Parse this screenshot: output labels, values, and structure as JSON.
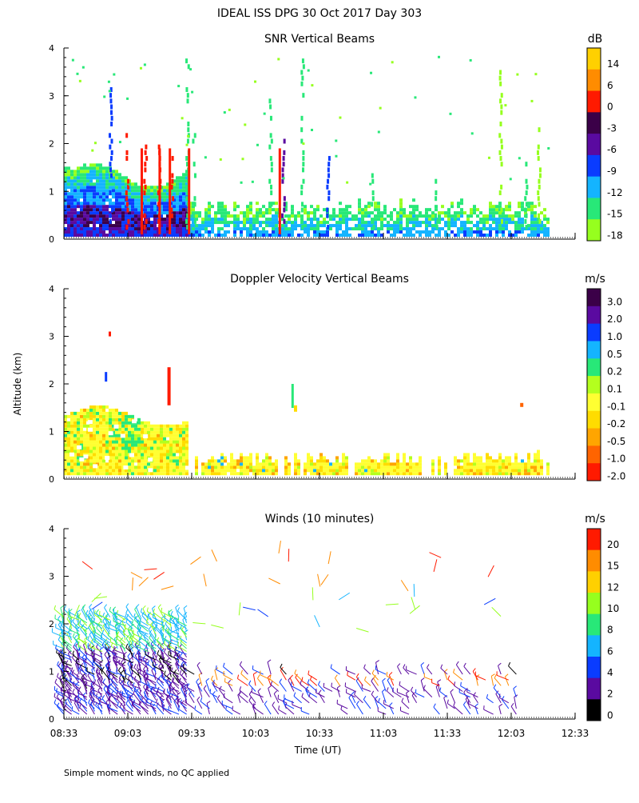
{
  "page": {
    "title": "IDEAL ISS DPG  30 Oct 2017 Day 303",
    "ylabel": "Altitude (km)",
    "xlabel": "Time (UT)",
    "footnote": "Simple moment winds, no QC applied"
  },
  "chart_data": [
    {
      "type": "heatmap",
      "title": "SNR Vertical Beams",
      "unit": "dB",
      "y_ticks": [
        "0",
        "1",
        "2",
        "3",
        "4"
      ],
      "ylim": [
        0,
        4
      ],
      "x_ticks": [],
      "colorbar": {
        "labels": [
          "14",
          "6",
          "0",
          "-3",
          "-6",
          "-9",
          "-12",
          "-15",
          "-18"
        ],
        "colors": [
          "#ffd000",
          "#ff8c00",
          "#ff1a00",
          "#3b0048",
          "#5a0aa0",
          "#0a3cff",
          "#14b4ff",
          "#28e878",
          "#96ff1e"
        ]
      },
      "description_values": {
        "time_range": [
          "08:33",
          "12:33"
        ],
        "main_layer_top_km": 1.5,
        "post_0933_layer_top_km": 0.8
      }
    },
    {
      "type": "heatmap",
      "title": "Doppler Velocity Vertical Beams",
      "unit": "m/s",
      "y_ticks": [
        "0",
        "1",
        "2",
        "3",
        "4"
      ],
      "ylim": [
        0,
        4
      ],
      "x_ticks": [],
      "colorbar": {
        "labels": [
          "3.0",
          "2.0",
          "1.0",
          "0.5",
          "0.2",
          "0.1",
          "-0.1",
          "-0.2",
          "-0.5",
          "-1.0",
          "-2.0"
        ],
        "colors": [
          "#3b0048",
          "#5a0aa0",
          "#0a3cff",
          "#14b4ff",
          "#28e878",
          "#b4ff1e",
          "#ffff32",
          "#ffdc00",
          "#ffa500",
          "#ff6400",
          "#ff1a00"
        ]
      }
    },
    {
      "type": "scatter",
      "title": "Winds (10 minutes)",
      "unit": "m/s",
      "y_ticks": [
        "0",
        "1",
        "2",
        "3",
        "4"
      ],
      "ylim": [
        0,
        4
      ],
      "x_ticks": [
        "08:33",
        "09:03",
        "09:33",
        "10:03",
        "10:33",
        "11:03",
        "11:33",
        "12:03",
        "12:33"
      ],
      "colorbar": {
        "labels": [
          "20",
          "15",
          "12",
          "10",
          "8",
          "6",
          "4",
          "2",
          "0"
        ],
        "colors": [
          "#ff1a00",
          "#ff8c00",
          "#ffd000",
          "#96ff1e",
          "#28e878",
          "#14b4ff",
          "#0a3cff",
          "#5a0aa0",
          "#000000"
        ]
      }
    }
  ]
}
